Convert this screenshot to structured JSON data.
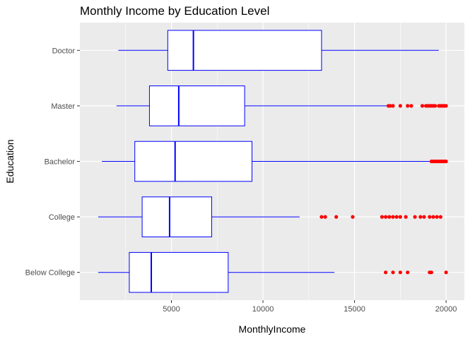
{
  "chart_data": {
    "type": "boxplot",
    "orientation": "horizontal",
    "title": "Monthly Income by Education Level",
    "xlabel": "MonthlyIncome",
    "ylabel": "Education",
    "xlim": [
      0,
      21000
    ],
    "x_ticks": [
      5000,
      10000,
      15000,
      20000
    ],
    "grid": true,
    "categories": [
      "Doctor",
      "Master",
      "Bachelor",
      "College",
      "Below College"
    ],
    "box_color": "#0000ff",
    "outlier_color": "#ff0000",
    "panel_color": "#ebebeb",
    "boxes": [
      {
        "category": "Doctor",
        "whisker_low": 2100,
        "q1": 4800,
        "median": 6200,
        "q3": 13200,
        "whisker_high": 19600,
        "outliers": []
      },
      {
        "category": "Master",
        "whisker_low": 2000,
        "q1": 3800,
        "median": 5400,
        "q3": 9000,
        "whisker_high": 16800,
        "outliers": [
          16850,
          16950,
          17100,
          17500,
          17900,
          18100,
          18700,
          18900,
          19000,
          19100,
          19200,
          19300,
          19400,
          19600,
          19700,
          19800,
          19900,
          20000
        ]
      },
      {
        "category": "Bachelor",
        "whisker_low": 1200,
        "q1": 3000,
        "median": 5200,
        "q3": 9400,
        "whisker_high": 19100,
        "outliers": [
          19200,
          19300,
          19400,
          19500,
          19600,
          19700,
          19800,
          19900,
          20000
        ]
      },
      {
        "category": "College",
        "whisker_low": 1000,
        "q1": 3400,
        "median": 4900,
        "q3": 7200,
        "whisker_high": 12000,
        "outliers": [
          13200,
          13400,
          14000,
          14900,
          16500,
          16700,
          16900,
          17100,
          17300,
          17500,
          17800,
          18300,
          18600,
          18800,
          19100,
          19300,
          19500,
          19700
        ]
      },
      {
        "category": "Below College",
        "whisker_low": 1000,
        "q1": 2700,
        "median": 3900,
        "q3": 8100,
        "whisker_high": 13900,
        "outliers": [
          16700,
          17100,
          17500,
          17900,
          19100,
          19200,
          20000
        ]
      }
    ]
  }
}
